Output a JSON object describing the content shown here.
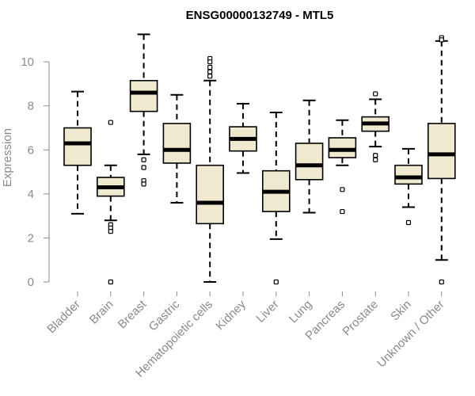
{
  "chart_data": {
    "type": "boxplot",
    "title": "ENSG00000132749 - MTL5",
    "xlabel": "",
    "ylabel": "Expression",
    "ylim": [
      0,
      11.3
    ],
    "yticks": [
      0,
      2,
      4,
      6,
      8,
      10
    ],
    "grid": false,
    "box_color": "#efe9d0",
    "categories": [
      "Bladder",
      "Brain",
      "Breast",
      "Gastric",
      "Hematopoietic cells",
      "Kidney",
      "Liver",
      "Lung",
      "Pancreas",
      "Prostate",
      "Skin",
      "Unknown / Other"
    ],
    "boxes": [
      {
        "whislo": 3.1,
        "q1": 5.3,
        "med": 6.3,
        "q3": 7.0,
        "whishi": 8.65,
        "fliers": []
      },
      {
        "whislo": 2.8,
        "q1": 3.9,
        "med": 4.3,
        "q3": 4.75,
        "whishi": 5.3,
        "fliers": [
          7.25,
          2.6,
          2.45,
          2.3,
          0.0
        ]
      },
      {
        "whislo": 5.8,
        "q1": 7.75,
        "med": 8.6,
        "q3": 9.15,
        "whishi": 11.25,
        "fliers": [
          5.55,
          5.2,
          4.6,
          4.45
        ]
      },
      {
        "whislo": 3.6,
        "q1": 5.4,
        "med": 6.0,
        "q3": 7.2,
        "whishi": 8.5,
        "fliers": []
      },
      {
        "whislo": 0.0,
        "q1": 2.65,
        "med": 3.6,
        "q3": 5.3,
        "whishi": 9.15,
        "fliers": [
          10.15,
          10.0,
          9.75,
          9.55,
          9.35
        ]
      },
      {
        "whislo": 4.95,
        "q1": 5.95,
        "med": 6.5,
        "q3": 7.05,
        "whishi": 8.1,
        "fliers": []
      },
      {
        "whislo": 1.95,
        "q1": 3.2,
        "med": 4.1,
        "q3": 5.05,
        "whishi": 7.7,
        "fliers": [
          0.0
        ]
      },
      {
        "whislo": 3.15,
        "q1": 4.65,
        "med": 5.3,
        "q3": 6.3,
        "whishi": 8.25,
        "fliers": []
      },
      {
        "whislo": 5.3,
        "q1": 5.65,
        "med": 6.0,
        "q3": 6.55,
        "whishi": 7.35,
        "fliers": [
          4.2,
          3.2
        ]
      },
      {
        "whislo": 6.15,
        "q1": 6.85,
        "med": 7.2,
        "q3": 7.5,
        "whishi": 8.3,
        "fliers": [
          8.55,
          5.75,
          5.55
        ]
      },
      {
        "whislo": 3.4,
        "q1": 4.45,
        "med": 4.75,
        "q3": 5.3,
        "whishi": 6.05,
        "fliers": [
          2.7
        ]
      },
      {
        "whislo": 1.0,
        "q1": 4.7,
        "med": 5.8,
        "q3": 7.2,
        "whishi": 10.95,
        "fliers": [
          11.1,
          11.0,
          0.0
        ]
      }
    ]
  }
}
